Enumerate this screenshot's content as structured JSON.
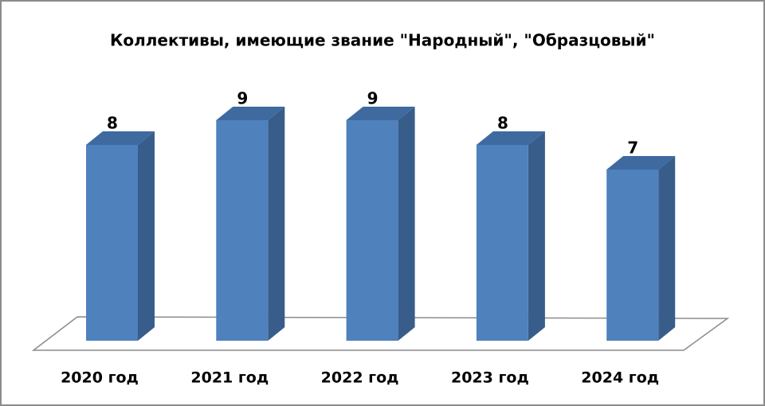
{
  "chart_data": {
    "type": "bar3d",
    "title": "Коллективы, имеющие звание \"Народный\", \"Образцовый\"",
    "categories": [
      "2020 год",
      "2021 год",
      "2022 год",
      "2023 год",
      "2024 год"
    ],
    "values": [
      8,
      9,
      9,
      8,
      7
    ],
    "color": "#4f81bd"
  }
}
